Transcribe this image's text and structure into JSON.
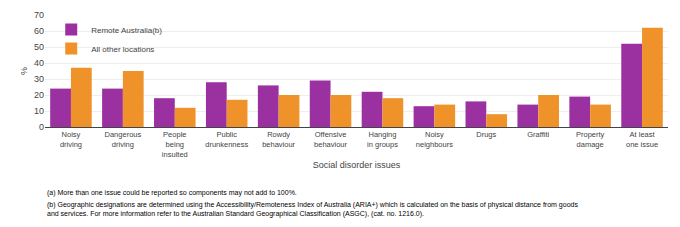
{
  "chart_data": {
    "type": "bar",
    "categories": [
      "Noisy\ndriving",
      "Dangerous\ndriving",
      "People\nbeing\ninsulted",
      "Public\ndrunkenness",
      "Rowdy\nbehaviour",
      "Offensive\nbehaviour",
      "Hanging\nin groups",
      "Noisy\nneighbours",
      "Drugs",
      "Graffiti",
      "Property\ndamage",
      "At least\none issue"
    ],
    "series": [
      {
        "name": "Remote Australia(b)",
        "color": "#9B30A0",
        "values": [
          24,
          24,
          18,
          28,
          26,
          29,
          22,
          13,
          16,
          14,
          19,
          52
        ]
      },
      {
        "name": "All other locations",
        "color": "#F0922A",
        "values": [
          37,
          35,
          12,
          17,
          20,
          20,
          18,
          14,
          8,
          20,
          14,
          62
        ]
      }
    ],
    "xlabel": "Social disorder issues",
    "ylabel": "%",
    "ylim": [
      0,
      70
    ],
    "yticks": [
      0,
      10,
      20,
      30,
      40,
      50,
      60,
      70
    ],
    "grid": true,
    "legend": "upper left",
    "annotations": [
      "(a) More than one issue could be reported so components may not add to 100%.",
      "(b) Geographic designations are determined using the Accessibility/Remoteness Index of Australia (ARIA+) which is calculated on the basis of physical distance from goods and services. For more information refer to the Australian Standard Geographical Classification (ASGC), (cat. no. 1216.0)."
    ]
  }
}
